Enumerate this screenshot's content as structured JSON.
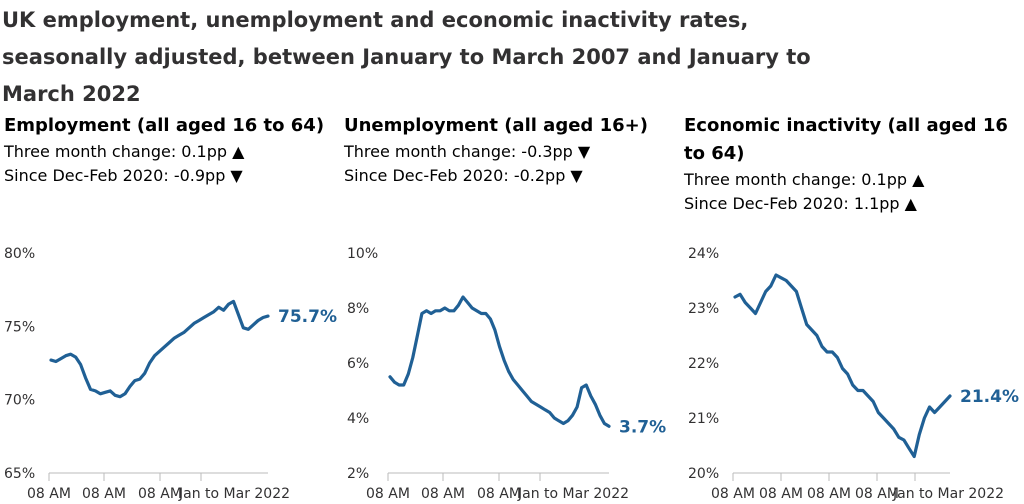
{
  "title": "UK employment, unemployment and economic inactivity rates, seasonally adjusted, between January to March 2007 and January to March 2022",
  "colors": {
    "line": "#206095",
    "axis": "#bbbbbb",
    "text": "#323132"
  },
  "panels": [
    {
      "title": "Employment (all aged 16 to 64)",
      "three_month": "Three month change: 0.1pp ▲",
      "since": "Since Dec-Feb 2020: -0.9pp ▼",
      "end_label": "75.7%"
    },
    {
      "title": "Unemployment (all aged 16+)",
      "three_month": "Three month change: -0.3pp ▼",
      "since": "Since Dec-Feb 2020: -0.2pp ▼",
      "end_label": "3.7%"
    },
    {
      "title": "Economic inactivity (all aged 16 to 64)",
      "three_month": "Three month change: 0.1pp ▲",
      "since": "Since Dec-Feb 2020: 1.1pp ▲",
      "end_label": "21.4%"
    }
  ],
  "chart_data": [
    {
      "type": "line",
      "x_tick_labels": [
        "08 AM",
        "08 AM",
        "08 AM",
        "Jan to Mar 2022"
      ],
      "y_ticks": [
        "65%",
        "70%",
        "75%",
        "80%"
      ],
      "ylim": [
        65,
        80
      ],
      "grid": false,
      "series": [
        {
          "values": [
            72.7,
            72.6,
            72.8,
            73.0,
            73.1,
            72.9,
            72.4,
            71.5,
            70.7,
            70.6,
            70.4,
            70.5,
            70.6,
            70.3,
            70.2,
            70.4,
            70.9,
            71.3,
            71.4,
            71.8,
            72.5,
            73.0,
            73.3,
            73.6,
            73.9,
            74.2,
            74.4,
            74.6,
            74.9,
            75.2,
            75.4,
            75.6,
            75.8,
            76.0,
            76.3,
            76.1,
            76.5,
            76.7,
            75.8,
            74.9,
            74.8,
            75.1,
            75.4,
            75.6,
            75.7
          ]
        }
      ]
    },
    {
      "type": "line",
      "x_tick_labels": [
        "08 AM",
        "08 AM",
        "08 AM",
        "Jan to Mar 2022"
      ],
      "y_ticks": [
        "2%",
        "4%",
        "6%",
        "8%",
        "10%"
      ],
      "ylim": [
        2,
        10
      ],
      "grid": false,
      "series": [
        {
          "values": [
            5.5,
            5.3,
            5.2,
            5.2,
            5.6,
            6.2,
            7.0,
            7.8,
            7.9,
            7.8,
            7.9,
            7.9,
            8.0,
            7.9,
            7.9,
            8.1,
            8.4,
            8.2,
            8.0,
            7.9,
            7.8,
            7.8,
            7.6,
            7.2,
            6.6,
            6.1,
            5.7,
            5.4,
            5.2,
            5.0,
            4.8,
            4.6,
            4.5,
            4.4,
            4.3,
            4.2,
            4.0,
            3.9,
            3.8,
            3.9,
            4.1,
            4.4,
            5.1,
            5.2,
            4.8,
            4.5,
            4.1,
            3.8,
            3.7
          ]
        }
      ]
    },
    {
      "type": "line",
      "x_tick_labels": [
        "08 AM",
        "08 AM",
        "08 AM",
        "08 AM",
        "Jan to Mar 2022"
      ],
      "y_ticks": [
        "20%",
        "21%",
        "22%",
        "23%",
        "24%"
      ],
      "ylim": [
        20,
        24
      ],
      "grid": false,
      "series": [
        {
          "values": [
            23.2,
            23.25,
            23.1,
            23.0,
            22.9,
            23.1,
            23.3,
            23.4,
            23.6,
            23.55,
            23.5,
            23.4,
            23.3,
            23.0,
            22.7,
            22.6,
            22.5,
            22.3,
            22.2,
            22.2,
            22.1,
            21.9,
            21.8,
            21.6,
            21.5,
            21.5,
            21.4,
            21.3,
            21.1,
            21.0,
            20.9,
            20.8,
            20.65,
            20.6,
            20.45,
            20.3,
            20.7,
            21.0,
            21.2,
            21.1,
            21.2,
            21.3,
            21.4
          ]
        }
      ]
    }
  ]
}
